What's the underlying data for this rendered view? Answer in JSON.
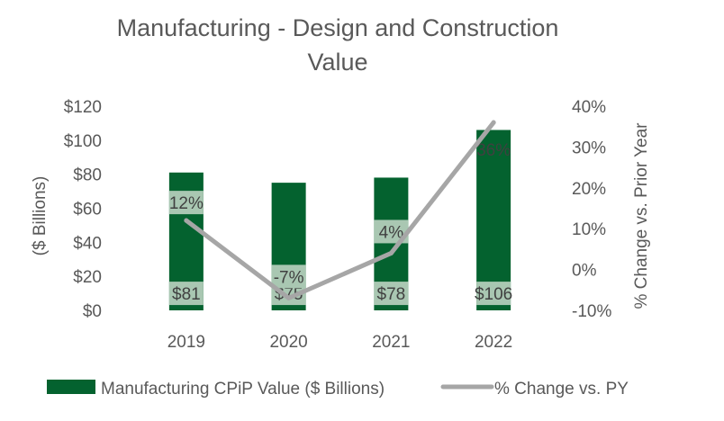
{
  "chart_data": {
    "type": "bar",
    "title": "Manufacturing - Design and Construction Value",
    "title_lines": [
      "Manufacturing - Design and Construction",
      "Value"
    ],
    "categories": [
      "2019",
      "2020",
      "2021",
      "2022"
    ],
    "series": [
      {
        "name": "Manufacturing CPiP Value ($ Billions)",
        "type": "bar",
        "axis": "left",
        "color": "#04622F",
        "values": [
          81,
          75,
          78,
          106
        ],
        "labels": [
          "$81",
          "$75",
          "$78",
          "$106"
        ]
      },
      {
        "name": "% Change vs. PY",
        "type": "line",
        "axis": "right",
        "color": "#A6A6A6",
        "values": [
          12,
          -7,
          4,
          36
        ],
        "labels": [
          "12%",
          "-7%",
          "4%",
          "36%"
        ]
      }
    ],
    "y_left": {
      "label": "($ Billions)",
      "ylim": [
        0,
        120
      ],
      "ticks": [
        0,
        20,
        40,
        60,
        80,
        100,
        120
      ],
      "tick_labels": [
        "$0",
        "$20",
        "$40",
        "$60",
        "$80",
        "$100",
        "$120"
      ]
    },
    "y_right": {
      "label": "% Change vs. Prior Year",
      "ylim": [
        -10,
        40
      ],
      "ticks": [
        -10,
        0,
        10,
        20,
        30,
        40
      ],
      "tick_labels": [
        "-10%",
        "0%",
        "10%",
        "20%",
        "30%",
        "40%"
      ]
    },
    "grid": false,
    "legend_position": "bottom",
    "label_box_color": "#A9C7B2"
  }
}
